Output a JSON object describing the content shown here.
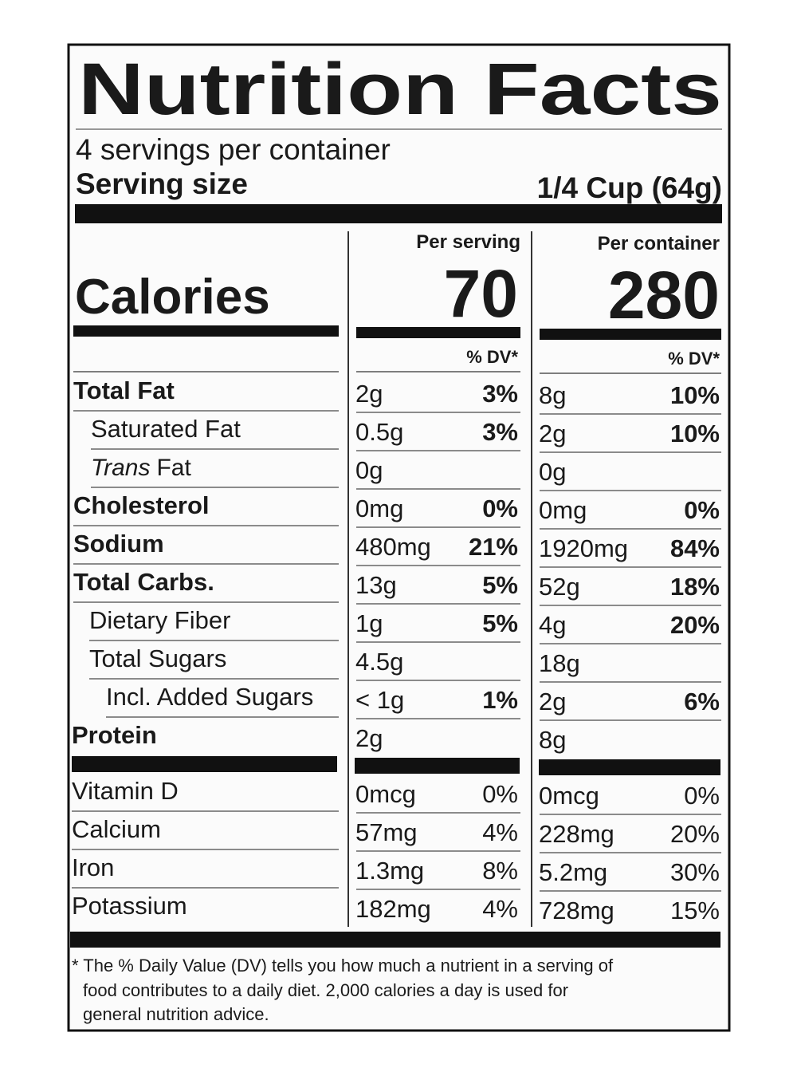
{
  "title": "Nutrition Facts",
  "servings": "4 servings per container",
  "serving_size": {
    "label": "Serving size",
    "value": "1/4 Cup (64g)"
  },
  "calories": {
    "label": "Calories",
    "per_serving_label": "Per serving",
    "per_container_label": "Per container",
    "per_serving": "70",
    "per_container": "280"
  },
  "dv_header": "% DV*",
  "nutrients": [
    {
      "name": "Total Fat",
      "serving": {
        "amount": "2g",
        "dv": "3%"
      },
      "container": {
        "amount": "8g",
        "dv": "10%"
      }
    },
    {
      "name": "Saturated Fat",
      "serving": {
        "amount": "0.5g",
        "dv": "3%"
      },
      "container": {
        "amount": "2g",
        "dv": "10%"
      }
    },
    {
      "name_italic": "Trans",
      "name": "Fat",
      "serving": {
        "amount": "0g"
      },
      "container": {
        "amount": "0g"
      }
    },
    {
      "name": "Cholesterol",
      "serving": {
        "amount": "0mg",
        "dv": "0%"
      },
      "container": {
        "amount": "0mg",
        "dv": "0%"
      }
    },
    {
      "name": "Sodium",
      "serving": {
        "amount": "480mg",
        "dv": "21%"
      },
      "container": {
        "amount": "1920mg",
        "dv": "84%"
      }
    },
    {
      "name": "Total Carbs.",
      "serving": {
        "amount": "13g",
        "dv": "5%"
      },
      "container": {
        "amount": "52g",
        "dv": "18%"
      }
    },
    {
      "name": "Dietary Fiber",
      "serving": {
        "amount": "1g",
        "dv": "5%"
      },
      "container": {
        "amount": "4g",
        "dv": "20%"
      }
    },
    {
      "name": "Total Sugars",
      "serving": {
        "amount": "4.5g"
      },
      "container": {
        "amount": "18g"
      }
    },
    {
      "name": "Incl. Added Sugars",
      "serving": {
        "amount": "< 1g",
        "dv": "1%"
      },
      "container": {
        "amount": "2g",
        "dv": "6%"
      }
    },
    {
      "name": "Protein",
      "serving": {
        "amount": "2g"
      },
      "container": {
        "amount": "8g"
      }
    }
  ],
  "vitamins": [
    {
      "name": "Vitamin D",
      "serving": {
        "amount": "0mcg",
        "dv": "0%"
      },
      "container": {
        "amount": "0mcg",
        "dv": "0%"
      }
    },
    {
      "name": "Calcium",
      "serving": {
        "amount": "57mg",
        "dv": "4%"
      },
      "container": {
        "amount": "228mg",
        "dv": "20%"
      }
    },
    {
      "name": "Iron",
      "serving": {
        "amount": "1.3mg",
        "dv": "8%"
      },
      "container": {
        "amount": "5.2mg",
        "dv": "30%"
      }
    },
    {
      "name": "Potassium",
      "serving": {
        "amount": "182mg",
        "dv": "4%"
      },
      "container": {
        "amount": "728mg",
        "dv": "15%"
      }
    }
  ],
  "footnote": [
    "* The % Daily Value (DV) tells you how much a nutrient in a serving of",
    "food contributes to a daily diet. 2,000 calories a day is used for",
    "general nutrition advice."
  ]
}
